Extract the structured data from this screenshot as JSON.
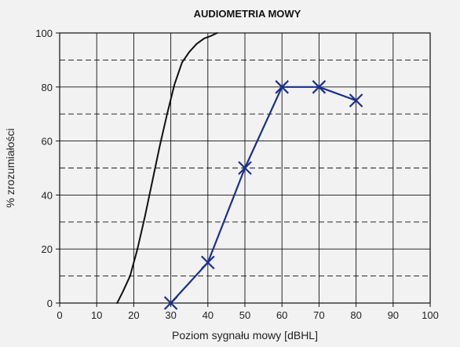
{
  "chart_data": {
    "type": "line",
    "title": "AUDIOMETRIA MOWY",
    "xlabel": "Poziom sygnału mowy [dBHL]",
    "ylabel": "% zrozumiałości",
    "xlim": [
      0,
      100
    ],
    "ylim": [
      0,
      100
    ],
    "xticks": [
      0,
      10,
      20,
      30,
      40,
      50,
      60,
      70,
      80,
      90,
      100
    ],
    "yticks": [
      0,
      20,
      40,
      60,
      80,
      100
    ],
    "grid": {
      "vertical": "solid",
      "horizontal_major": "solid",
      "horizontal_minor": "dashed"
    },
    "series": [
      {
        "color": "#111111",
        "markers": false,
        "x": [
          15.5,
          17,
          19,
          21,
          23,
          25,
          27,
          29,
          31,
          33,
          35,
          37,
          39,
          41,
          42.5
        ],
        "y": [
          0,
          4,
          10,
          20,
          32,
          45,
          58,
          70,
          81,
          89,
          93,
          96,
          98,
          99,
          100
        ]
      },
      {
        "color": "#1a2f8f",
        "markers": true,
        "marker": "x",
        "x": [
          30,
          40,
          50,
          60,
          70,
          80
        ],
        "y": [
          0,
          15,
          50,
          80,
          80,
          75
        ]
      }
    ]
  }
}
